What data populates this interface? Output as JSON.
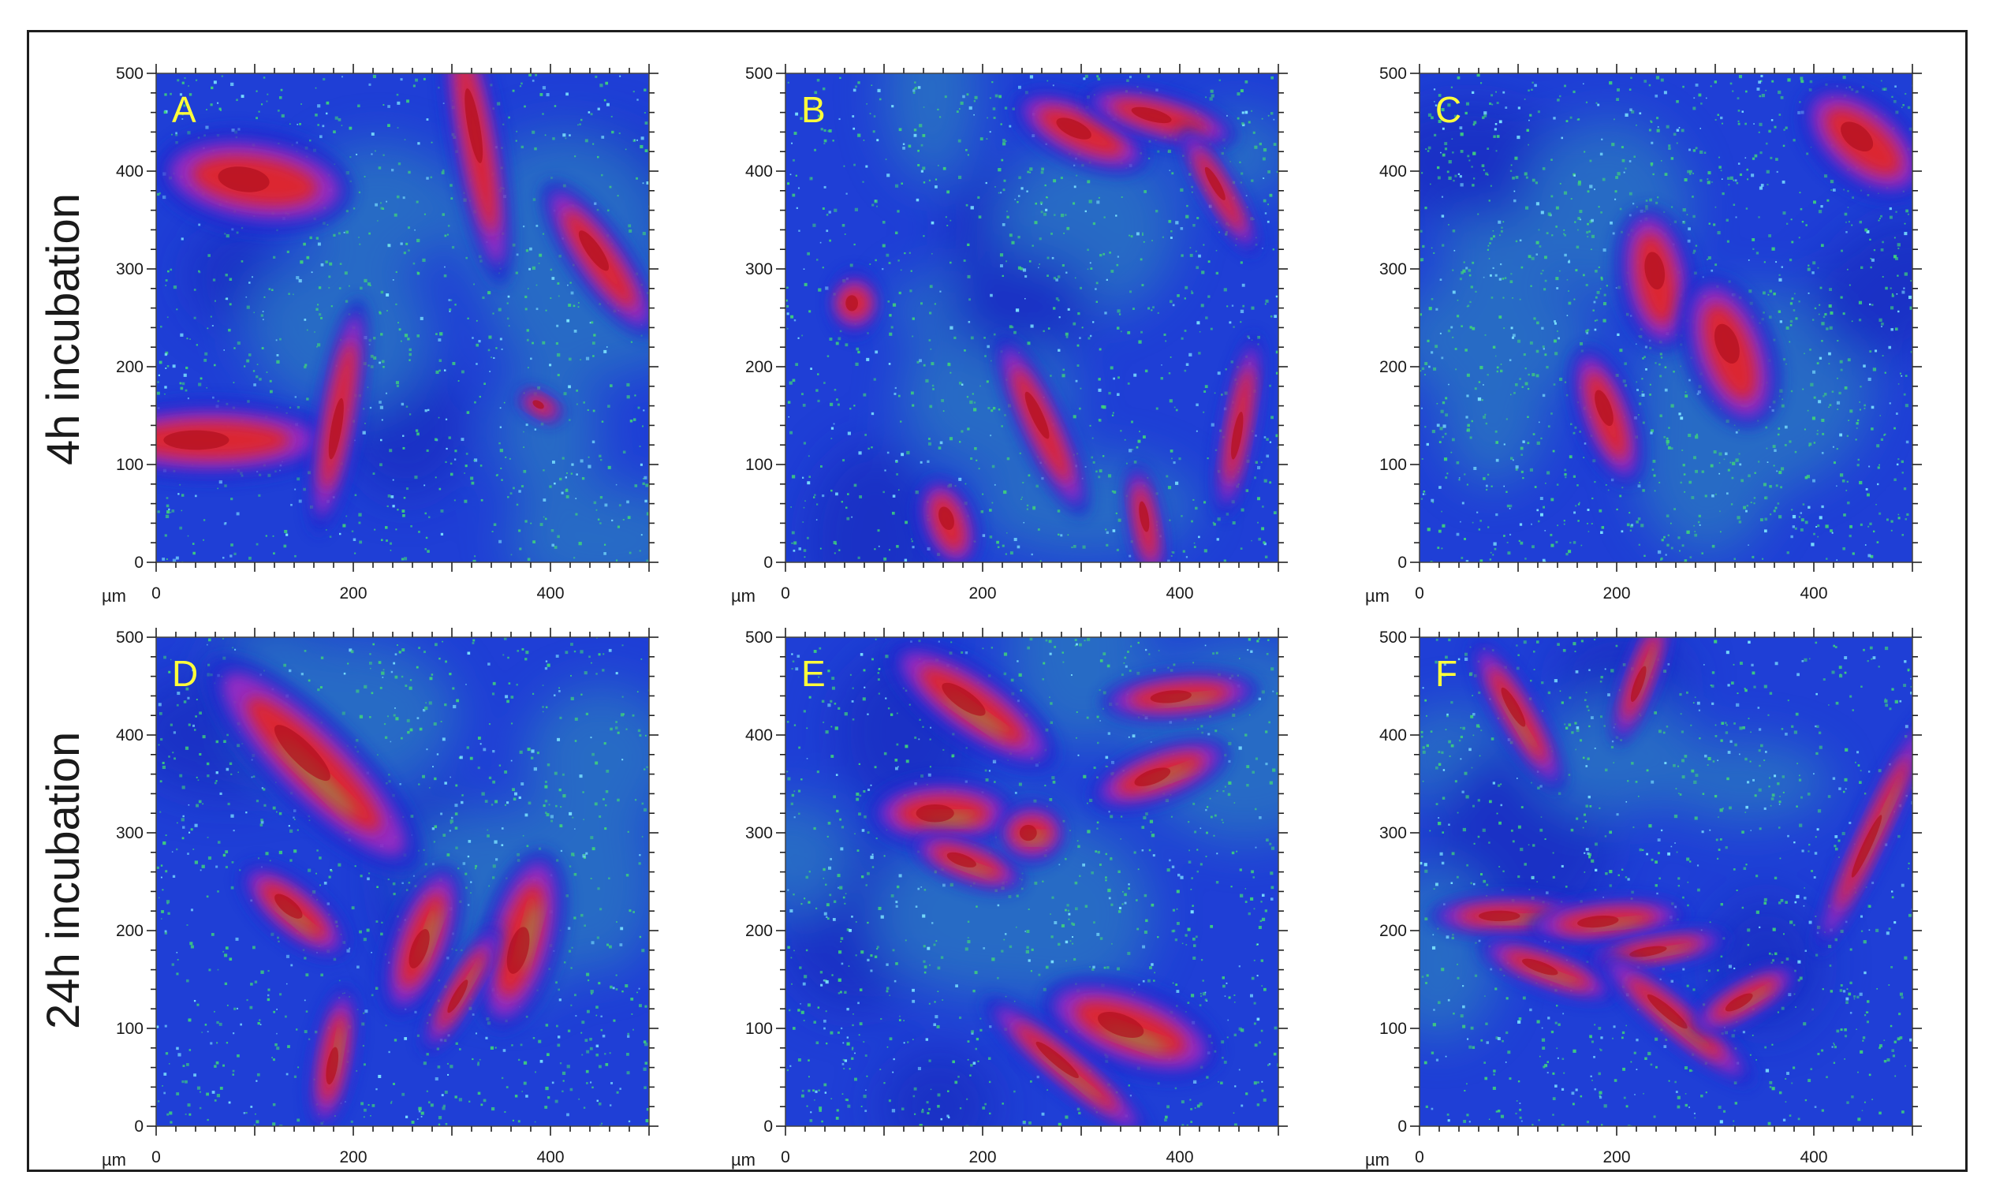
{
  "row_labels": [
    "4h incubation",
    "24h incubation"
  ],
  "axis": {
    "unit": "µm",
    "range": [
      0,
      500
    ],
    "major_ticks": [
      "0",
      "100",
      "200",
      "300",
      "400",
      "500"
    ],
    "x_major_ticks": [
      "0",
      "200",
      "400"
    ]
  },
  "colors": {
    "background_blue": "#1f3fd6",
    "green_speckle": "#3fd27a",
    "red_cell": "#e0282c",
    "magenta_edge": "#a82cc0",
    "letter_yellow": "#ffff3a"
  },
  "panels": [
    {
      "id": "A",
      "letter": "A",
      "row": 0,
      "col": 0
    },
    {
      "id": "B",
      "letter": "B",
      "row": 0,
      "col": 1
    },
    {
      "id": "C",
      "letter": "C",
      "row": 0,
      "col": 2
    },
    {
      "id": "D",
      "letter": "D",
      "row": 1,
      "col": 0
    },
    {
      "id": "E",
      "letter": "E",
      "row": 1,
      "col": 1
    },
    {
      "id": "F",
      "letter": "F",
      "row": 1,
      "col": 2
    }
  ]
}
